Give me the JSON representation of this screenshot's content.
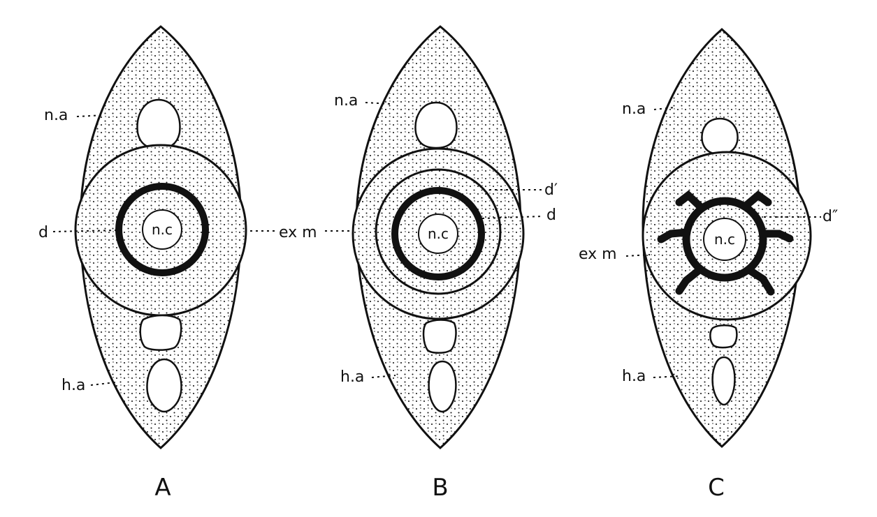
{
  "figures": [
    {
      "id": "A",
      "caption": "A",
      "labels": {
        "neural_arch": "n.a",
        "haemal_arch": "h.a",
        "disc": "d",
        "nerve_cord": "n.c"
      }
    },
    {
      "id": "B",
      "caption": "B",
      "labels": {
        "neural_arch": "n.a",
        "haemal_arch": "h.a",
        "disc_outer": "d′",
        "disc": "d",
        "nerve_cord": "n.c"
      }
    },
    {
      "id": "C",
      "caption": "C",
      "labels": {
        "neural_arch": "n.a",
        "haemal_arch": "h.a",
        "disc": "d″",
        "nerve_cord": "n.c"
      }
    }
  ],
  "shared_labels": {
    "ex_m_ab": "ex m",
    "ex_m_c": "ex m"
  },
  "colors": {
    "ink": "#111111",
    "paper": "#ffffff"
  }
}
